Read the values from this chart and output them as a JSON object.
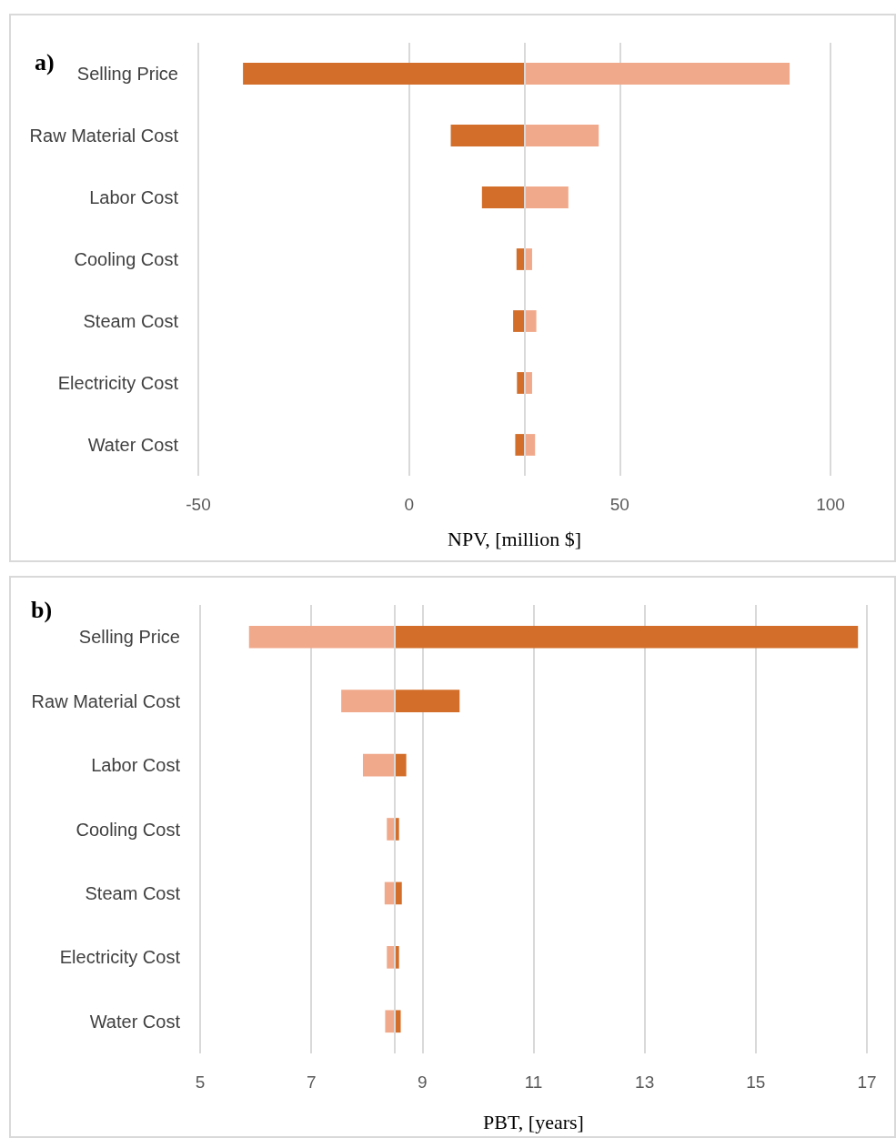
{
  "chart_data": [
    {
      "type": "bar",
      "orientation": "horizontal",
      "annotations": [
        "a)"
      ],
      "xlabel": "NPV, [million $]",
      "categories": [
        "Selling Price",
        "Raw Material Cost",
        "Labor Cost",
        "Cooling Cost",
        "Steam Cost",
        "Electricity Cost",
        "Water Cost"
      ],
      "series": [
        {
          "color": "#d36e2a",
          "base": [
            27.5,
            27.5,
            27.5,
            27.5,
            27.5,
            27.5,
            27.5
          ],
          "values": [
            -66.9,
            -17.6,
            -10.2,
            -2.0,
            -2.8,
            -1.9,
            -2.3
          ]
        },
        {
          "color": "#f1a98b",
          "base": [
            27.5,
            27.5,
            27.5,
            27.5,
            27.5,
            27.5,
            27.5
          ],
          "values": [
            62.8,
            17.5,
            10.3,
            1.7,
            2.7,
            1.7,
            2.4
          ]
        }
      ],
      "xlim": [
        -50,
        100
      ],
      "xticks": [
        -50,
        0,
        50,
        100
      ],
      "grid": "x",
      "ref_lines": [
        {
          "axis": "x",
          "value": 27.5,
          "color": "#d9d9d9"
        }
      ]
    },
    {
      "type": "bar",
      "orientation": "horizontal",
      "annotations": [
        "b)"
      ],
      "xlabel": "PBT, [years]",
      "categories": [
        "Selling Price",
        "Raw Material Cost",
        "Labor Cost",
        "Cooling Cost",
        "Steam Cost",
        "Electricity Cost",
        "Water Cost"
      ],
      "series": [
        {
          "color": "#f1a98b",
          "base": [
            8.5,
            8.5,
            8.5,
            8.5,
            8.5,
            8.5,
            8.5
          ],
          "values": [
            -2.62,
            -0.96,
            -0.57,
            -0.14,
            -0.18,
            -0.14,
            -0.17
          ]
        },
        {
          "color": "#d36e2a",
          "base": [
            8.5,
            8.5,
            8.5,
            8.5,
            8.5,
            8.5,
            8.5
          ],
          "values": [
            8.34,
            1.17,
            0.21,
            0.08,
            0.13,
            0.08,
            0.11
          ]
        }
      ],
      "xlim": [
        5,
        17
      ],
      "xticks": [
        5,
        7,
        9,
        11,
        13,
        15,
        17
      ],
      "grid": "x",
      "ref_lines": [
        {
          "axis": "x",
          "value": 8.5,
          "color": "#d9d9d9"
        }
      ]
    }
  ]
}
